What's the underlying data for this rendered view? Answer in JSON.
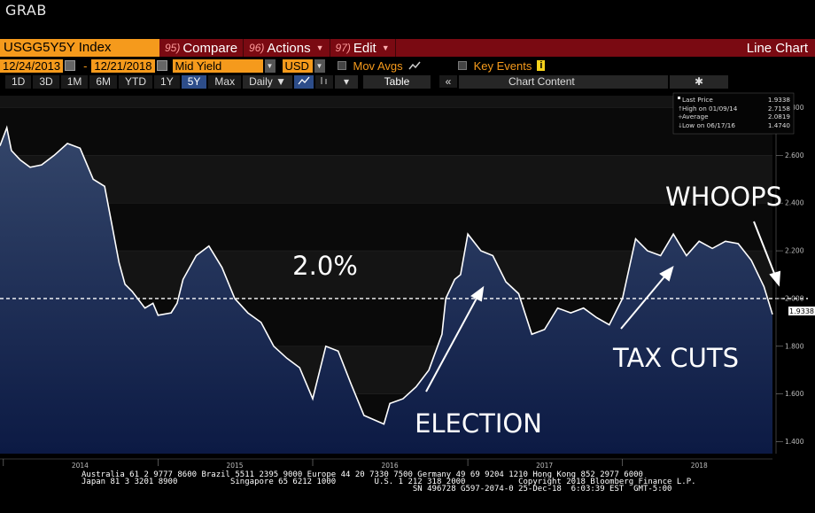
{
  "window": {
    "title": "GRAB"
  },
  "command_bar": {
    "ticker": "USGG5Y5Y Index",
    "menus": [
      {
        "num": "95)",
        "label": "Compare",
        "caret": false
      },
      {
        "num": "96)",
        "label": "Actions",
        "caret": true
      },
      {
        "num": "97)",
        "label": "Edit",
        "caret": true
      }
    ],
    "chart_type": "Line Chart"
  },
  "params": {
    "start_date": "12/24/2013",
    "end_date": "12/21/2018",
    "field": "Mid Yield",
    "currency": "USD",
    "mov_avgs": "Mov Avgs",
    "key_events": "Key Events",
    "info": "i"
  },
  "range_bar": {
    "ranges": [
      "1D",
      "3D",
      "1M",
      "6M",
      "YTD",
      "1Y",
      "5Y",
      "Max"
    ],
    "active_range": "5Y",
    "frequency": "Daily ▼",
    "table_label": "Table",
    "collapse": "«",
    "chart_content": "Chart Content",
    "settings": "✱"
  },
  "legend": {
    "rows": [
      {
        "label": "Last Price",
        "value": "1.9338"
      },
      {
        "label": "High on 01/09/14",
        "value": "2.7158"
      },
      {
        "label": "Average",
        "value": "2.0819"
      },
      {
        "label": "Low on 06/17/16",
        "value": "1.4740"
      }
    ]
  },
  "last_price_tag": "1.9338",
  "annotations": {
    "level": "2.0%",
    "election": "ELECTION",
    "tax_cuts": "TAX CUTS",
    "whoops": "WHOOPS"
  },
  "footer": {
    "line1": "Australia 61 2 9777 8600 Brazil 5511 2395 9000 Europe 44 20 7330 7500 Germany 49 69 9204 1210 Hong Kong 852 2977 6000",
    "line2": "Japan 81 3 3201 8900           Singapore 65 6212 1000        U.S. 1 212 318 2000           Copyright 2018 Bloomberg Finance L.P.",
    "line3": "                                                                     SN 496728 G597-2074-0 25-Dec-18  6:03:39 EST  GMT-5:00"
  },
  "colors": {
    "line": "#ffffff",
    "fill_top": "#34466a",
    "fill_bottom": "#0c1a44",
    "cmd_bar": "#7a0a12",
    "orange": "#f59a1c",
    "grid": "#2a2a2a"
  },
  "chart_data": {
    "type": "area",
    "title": "",
    "xlabel": "",
    "ylabel": "",
    "x_ticks": [
      "2014",
      "2015",
      "2016",
      "2017",
      "2018"
    ],
    "y_ticks": [
      "1.400",
      "1.600",
      "1.800",
      "2.000",
      "2.200",
      "2.400",
      "2.600",
      "2.800"
    ],
    "ylim": [
      1.35,
      2.85
    ],
    "xlim": [
      "2013-12-24",
      "2018-12-21"
    ],
    "axis_position": "right",
    "reference_line": 2.0,
    "series": [
      {
        "x": [
          "2013-12-24",
          "2014-01-09",
          "2014-01-20",
          "2014-02-10",
          "2014-03-05",
          "2014-04-01",
          "2014-05-01",
          "2014-06-01",
          "2014-07-01",
          "2014-08-01",
          "2014-08-28",
          "2014-09-15",
          "2014-10-01",
          "2014-10-15",
          "2014-11-01",
          "2014-12-01",
          "2014-12-20",
          "2015-01-01",
          "2015-02-01",
          "2015-02-15",
          "2015-03-01",
          "2015-04-01",
          "2015-05-01",
          "2015-06-01",
          "2015-07-01",
          "2015-08-01",
          "2015-09-01",
          "2015-10-01",
          "2015-11-01",
          "2015-12-01",
          "2016-01-01",
          "2016-02-01",
          "2016-03-01",
          "2016-04-01",
          "2016-05-01",
          "2016-06-17",
          "2016-07-01",
          "2016-08-01",
          "2016-09-01",
          "2016-10-01",
          "2016-11-01",
          "2016-11-10",
          "2016-12-01",
          "2016-12-15",
          "2017-01-01",
          "2017-02-01",
          "2017-03-01",
          "2017-04-01",
          "2017-05-01",
          "2017-06-01",
          "2017-07-01",
          "2017-08-01",
          "2017-09-01",
          "2017-10-01",
          "2017-11-01",
          "2017-12-01",
          "2018-01-01",
          "2018-02-01",
          "2018-03-01",
          "2018-04-01",
          "2018-05-01",
          "2018-06-01",
          "2018-07-01",
          "2018-08-01",
          "2018-09-01",
          "2018-10-01",
          "2018-11-01",
          "2018-12-01",
          "2018-12-21"
        ],
        "y": [
          2.64,
          2.7158,
          2.62,
          2.58,
          2.55,
          2.56,
          2.6,
          2.65,
          2.63,
          2.5,
          2.47,
          2.3,
          2.15,
          2.06,
          2.03,
          1.96,
          1.98,
          1.93,
          1.94,
          1.98,
          2.08,
          2.18,
          2.22,
          2.13,
          2.0,
          1.94,
          1.9,
          1.8,
          1.75,
          1.71,
          1.58,
          1.8,
          1.78,
          1.64,
          1.51,
          1.474,
          1.56,
          1.58,
          1.63,
          1.7,
          1.85,
          2.0,
          2.08,
          2.1,
          2.27,
          2.2,
          2.18,
          2.07,
          2.02,
          1.85,
          1.87,
          1.96,
          1.94,
          1.96,
          1.92,
          1.89,
          2.0,
          2.25,
          2.2,
          2.18,
          2.27,
          2.18,
          2.24,
          2.21,
          2.24,
          2.23,
          2.16,
          2.05,
          1.9338
        ]
      }
    ]
  }
}
